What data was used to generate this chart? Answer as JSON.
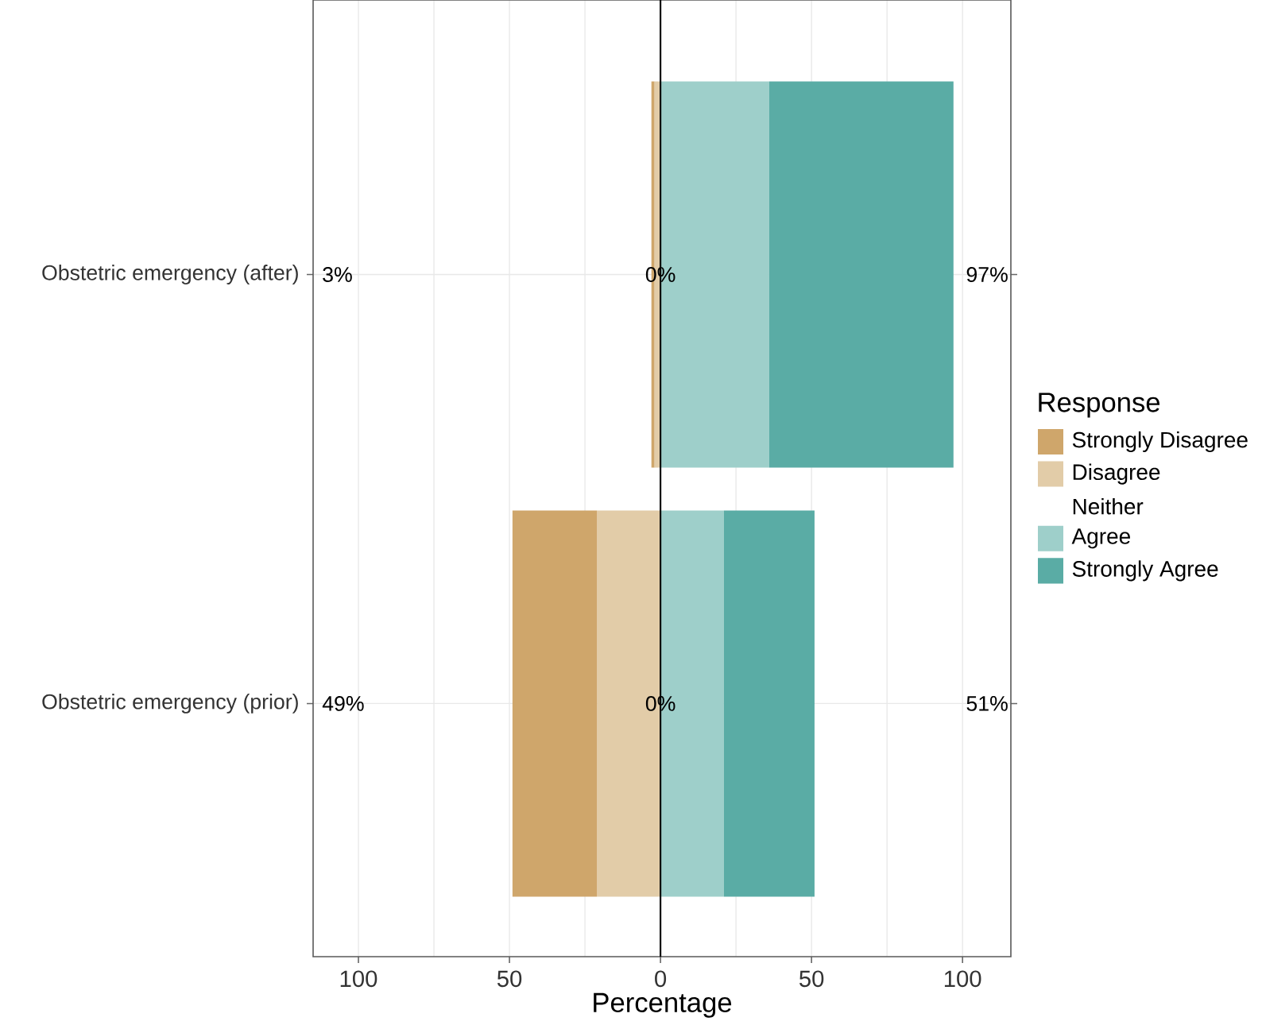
{
  "chart_data": {
    "type": "bar",
    "orientation": "horizontal",
    "stacked": true,
    "xlabel": "Percentage",
    "legend_title": "Response",
    "legend": "right",
    "grid": true,
    "categories": [
      "Obstetric emergency (after)",
      "Obstetric emergency (prior)"
    ],
    "series": [
      {
        "name": "Strongly Disagree",
        "color": "#cfa66b",
        "values": [
          -1,
          -28
        ]
      },
      {
        "name": "Disagree",
        "color": "#e2cca8",
        "values": [
          -2,
          -21
        ]
      },
      {
        "name": "Neither",
        "values": [
          0,
          0
        ]
      },
      {
        "name": "Agree",
        "color": "#9ecfca",
        "values": [
          36,
          21
        ]
      },
      {
        "name": "Strongly Agree",
        "color": "#5aaca5",
        "values": [
          61,
          30
        ]
      }
    ],
    "xlim": [
      -115,
      116
    ],
    "xticks": [
      {
        "value": -100,
        "label": "100"
      },
      {
        "value": -75,
        "label": null
      },
      {
        "value": -50,
        "label": "50"
      },
      {
        "value": -25,
        "label": null
      },
      0,
      {
        "value": 25,
        "label": null
      },
      50,
      {
        "value": 75,
        "label": null
      },
      100
    ],
    "ref_lines": [
      {
        "axis": "x",
        "value": 0,
        "color": "#000000"
      }
    ],
    "annotations": [
      "3%",
      "0%",
      "97%",
      "49%",
      "0%",
      "51%"
    ]
  }
}
